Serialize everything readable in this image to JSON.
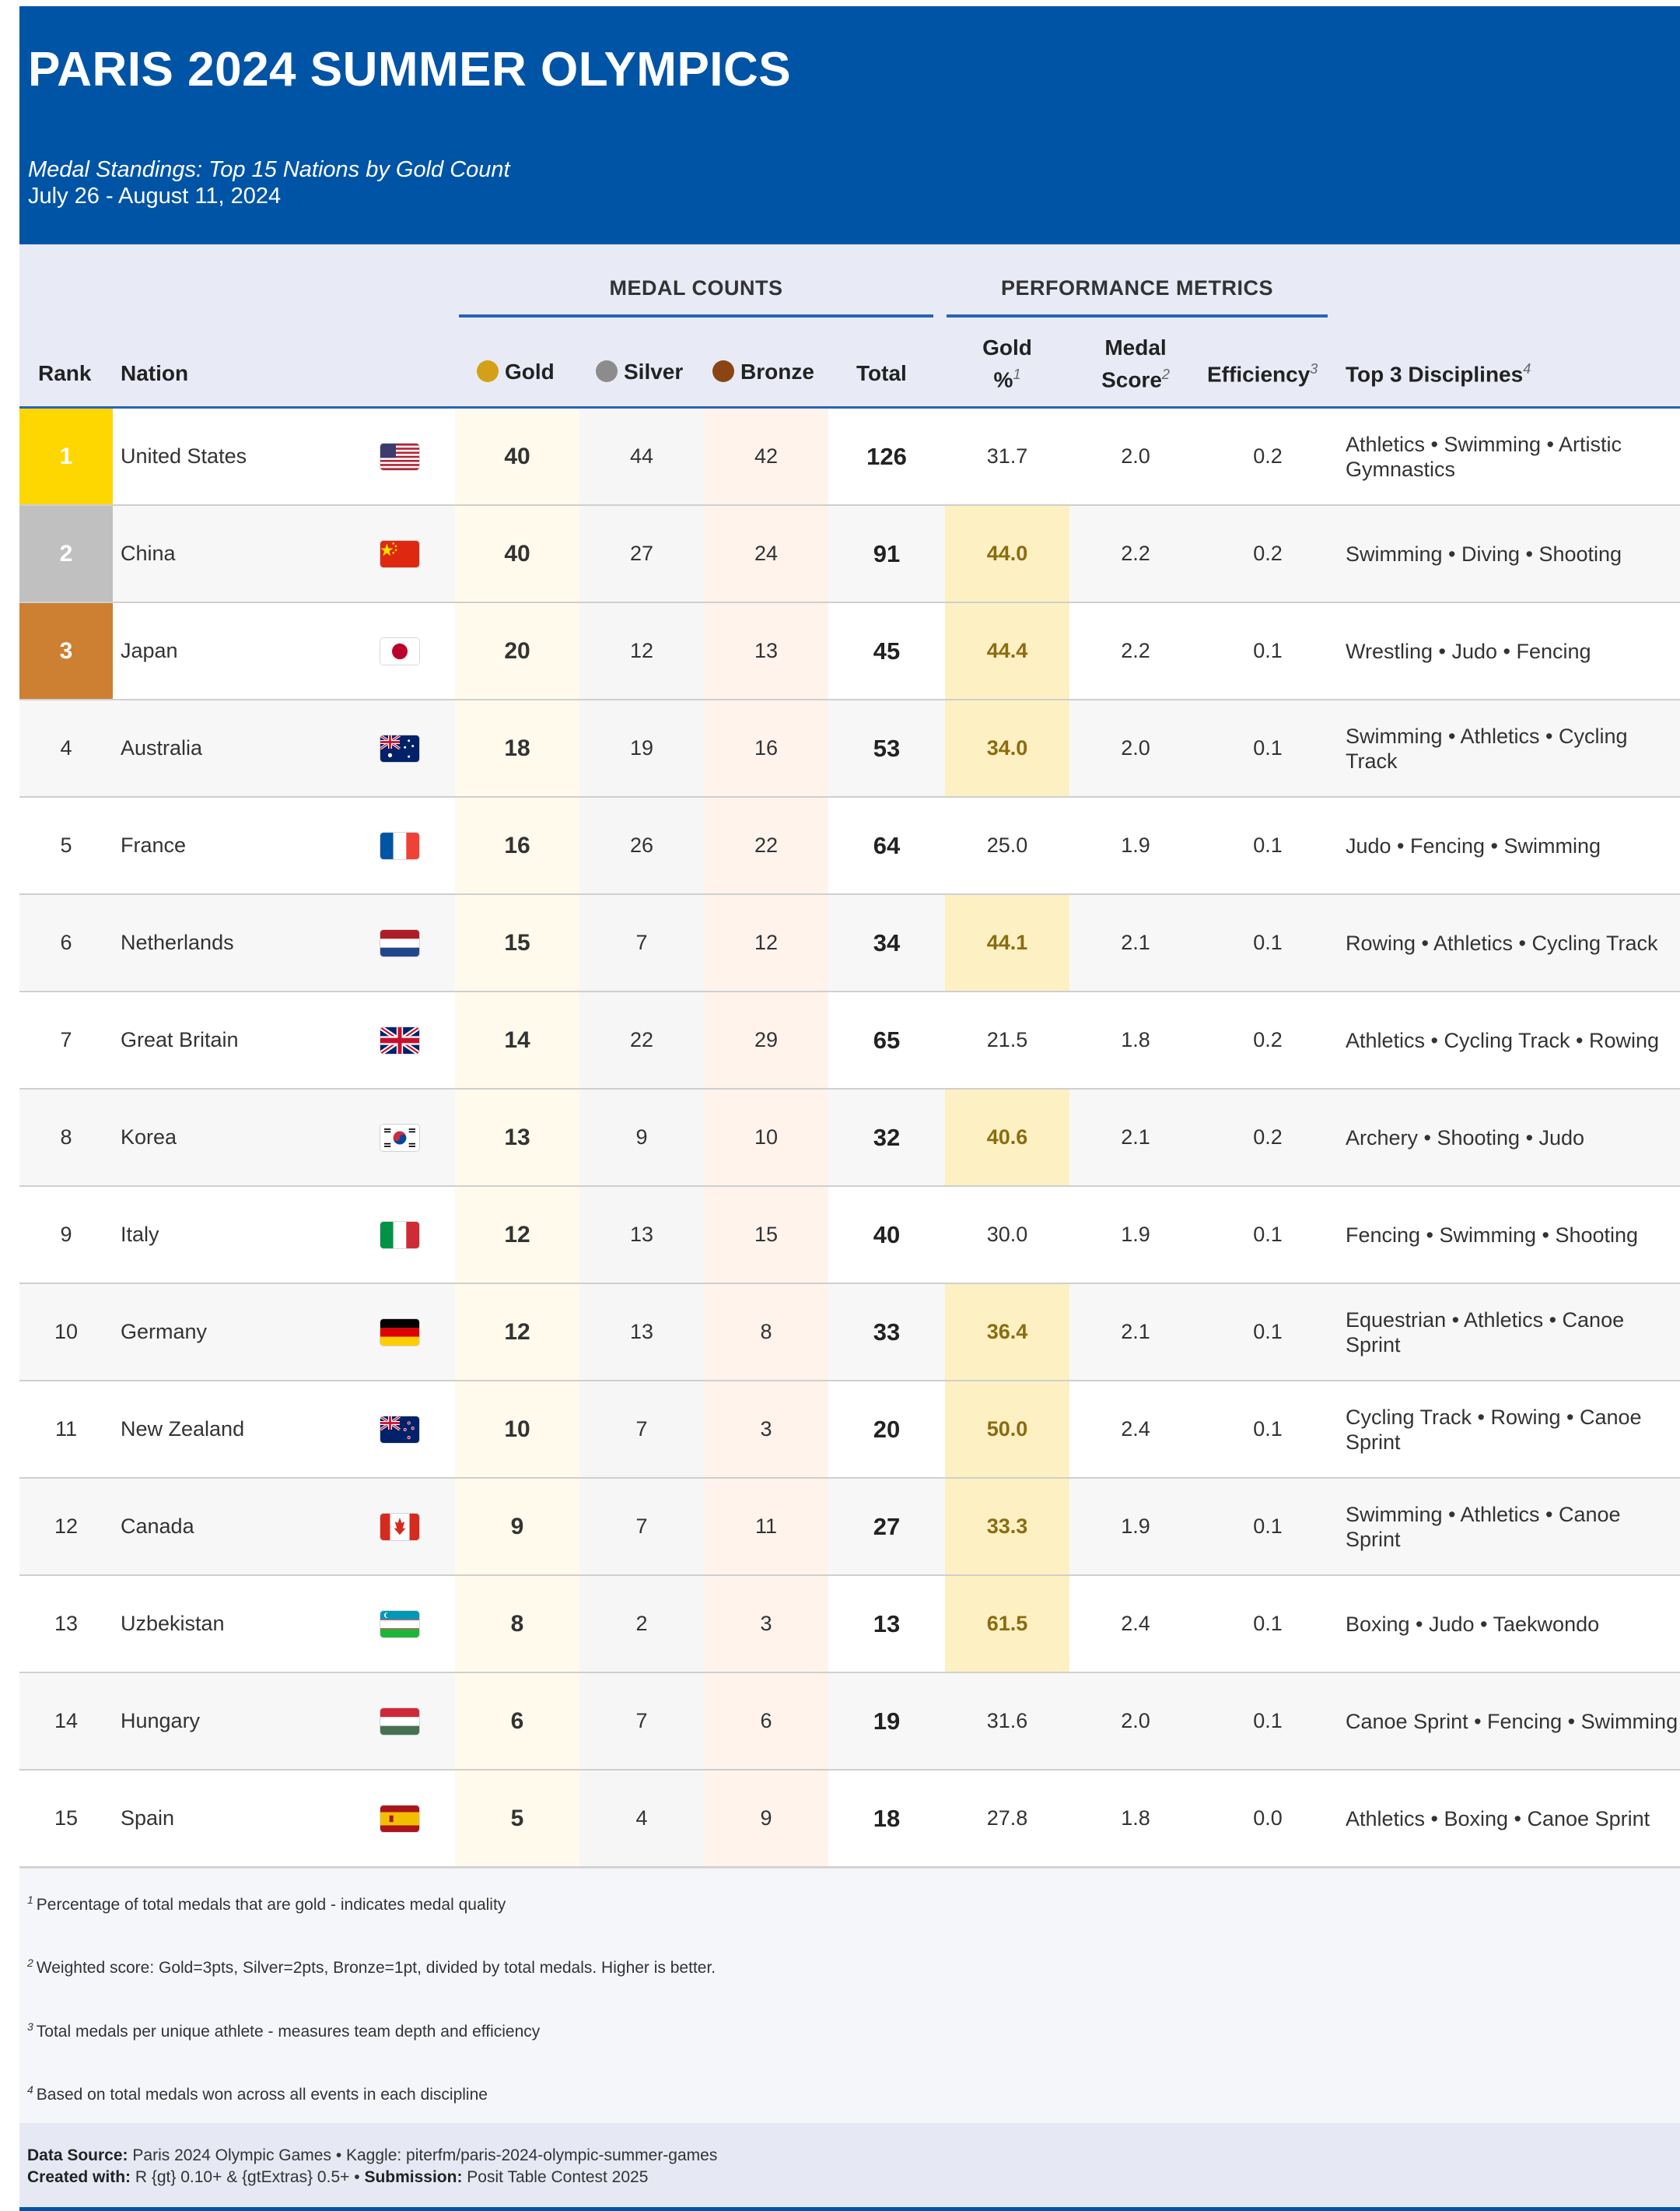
{
  "header": {
    "title": "PARIS 2024 SUMMER OLYMPICS",
    "subtitle": "Medal Standings: Top 15 Nations by Gold Count",
    "dates": "July 26 - August 11, 2024"
  },
  "spanners": {
    "medal_counts": "MEDAL COUNTS",
    "performance_metrics": "PERFORMANCE METRICS"
  },
  "columns": {
    "rank": "Rank",
    "nation": "Nation",
    "gold": "Gold",
    "silver": "Silver",
    "bronze": "Bronze",
    "total": "Total",
    "gold_pct_1": "Gold",
    "gold_pct_2": "%",
    "gold_pct_note": "1",
    "score_1": "Medal",
    "score_2": "Score",
    "score_note": "2",
    "efficiency": "Efficiency",
    "efficiency_note": "3",
    "disciplines": "Top 3 Disciplines",
    "disciplines_note": "4"
  },
  "colors": {
    "header_blue": "#0054a6",
    "gold_rank": "#ffd700",
    "silver_rank": "#c0c0c0",
    "bronze_rank": "#cd7f32",
    "gold_dot": "#d4a017",
    "silver_dot": "#8c8c8c",
    "bronze_dot": "#8b4513",
    "highlight": "#fdf0c3"
  },
  "rows": [
    {
      "rank": "1",
      "nation": "United States",
      "flag": "us",
      "gold": "40",
      "silver": "44",
      "bronze": "42",
      "total": "126",
      "gold_pct": "31.7",
      "hi": false,
      "score": "2.0",
      "eff": "0.2",
      "disciplines": "Athletics • Swimming • Artistic Gymnastics"
    },
    {
      "rank": "2",
      "nation": "China",
      "flag": "cn",
      "gold": "40",
      "silver": "27",
      "bronze": "24",
      "total": "91",
      "gold_pct": "44.0",
      "hi": true,
      "score": "2.2",
      "eff": "0.2",
      "disciplines": "Swimming • Diving • Shooting"
    },
    {
      "rank": "3",
      "nation": "Japan",
      "flag": "jp",
      "gold": "20",
      "silver": "12",
      "bronze": "13",
      "total": "45",
      "gold_pct": "44.4",
      "hi": true,
      "score": "2.2",
      "eff": "0.1",
      "disciplines": "Wrestling • Judo • Fencing"
    },
    {
      "rank": "4",
      "nation": "Australia",
      "flag": "au",
      "gold": "18",
      "silver": "19",
      "bronze": "16",
      "total": "53",
      "gold_pct": "34.0",
      "hi": true,
      "score": "2.0",
      "eff": "0.1",
      "disciplines": "Swimming • Athletics • Cycling Track"
    },
    {
      "rank": "5",
      "nation": "France",
      "flag": "fr",
      "gold": "16",
      "silver": "26",
      "bronze": "22",
      "total": "64",
      "gold_pct": "25.0",
      "hi": false,
      "score": "1.9",
      "eff": "0.1",
      "disciplines": "Judo • Fencing • Swimming"
    },
    {
      "rank": "6",
      "nation": "Netherlands",
      "flag": "nl",
      "gold": "15",
      "silver": "7",
      "bronze": "12",
      "total": "34",
      "gold_pct": "44.1",
      "hi": true,
      "score": "2.1",
      "eff": "0.1",
      "disciplines": "Rowing • Athletics • Cycling Track"
    },
    {
      "rank": "7",
      "nation": "Great Britain",
      "flag": "gb",
      "gold": "14",
      "silver": "22",
      "bronze": "29",
      "total": "65",
      "gold_pct": "21.5",
      "hi": false,
      "score": "1.8",
      "eff": "0.2",
      "disciplines": "Athletics • Cycling Track • Rowing"
    },
    {
      "rank": "8",
      "nation": "Korea",
      "flag": "kr",
      "gold": "13",
      "silver": "9",
      "bronze": "10",
      "total": "32",
      "gold_pct": "40.6",
      "hi": true,
      "score": "2.1",
      "eff": "0.2",
      "disciplines": "Archery • Shooting • Judo"
    },
    {
      "rank": "9",
      "nation": "Italy",
      "flag": "it",
      "gold": "12",
      "silver": "13",
      "bronze": "15",
      "total": "40",
      "gold_pct": "30.0",
      "hi": false,
      "score": "1.9",
      "eff": "0.1",
      "disciplines": "Fencing • Swimming • Shooting"
    },
    {
      "rank": "10",
      "nation": "Germany",
      "flag": "de",
      "gold": "12",
      "silver": "13",
      "bronze": "8",
      "total": "33",
      "gold_pct": "36.4",
      "hi": true,
      "score": "2.1",
      "eff": "0.1",
      "disciplines": "Equestrian • Athletics • Canoe Sprint"
    },
    {
      "rank": "11",
      "nation": "New Zealand",
      "flag": "nz",
      "gold": "10",
      "silver": "7",
      "bronze": "3",
      "total": "20",
      "gold_pct": "50.0",
      "hi": true,
      "score": "2.4",
      "eff": "0.1",
      "disciplines": "Cycling Track • Rowing • Canoe Sprint"
    },
    {
      "rank": "12",
      "nation": "Canada",
      "flag": "ca",
      "gold": "9",
      "silver": "7",
      "bronze": "11",
      "total": "27",
      "gold_pct": "33.3",
      "hi": true,
      "score": "1.9",
      "eff": "0.1",
      "disciplines": "Swimming • Athletics • Canoe Sprint"
    },
    {
      "rank": "13",
      "nation": "Uzbekistan",
      "flag": "uz",
      "gold": "8",
      "silver": "2",
      "bronze": "3",
      "total": "13",
      "gold_pct": "61.5",
      "hi": true,
      "score": "2.4",
      "eff": "0.1",
      "disciplines": "Boxing • Judo • Taekwondo"
    },
    {
      "rank": "14",
      "nation": "Hungary",
      "flag": "hu",
      "gold": "6",
      "silver": "7",
      "bronze": "6",
      "total": "19",
      "gold_pct": "31.6",
      "hi": false,
      "score": "2.0",
      "eff": "0.1",
      "disciplines": "Canoe Sprint • Fencing • Swimming"
    },
    {
      "rank": "15",
      "nation": "Spain",
      "flag": "es",
      "gold": "5",
      "silver": "4",
      "bronze": "9",
      "total": "18",
      "gold_pct": "27.8",
      "hi": false,
      "score": "1.8",
      "eff": "0.0",
      "disciplines": "Athletics • Boxing • Canoe Sprint"
    }
  ],
  "footnotes": [
    {
      "mark": "1",
      "text": "Percentage of total medals that are gold - indicates medal quality"
    },
    {
      "mark": "2",
      "text": "Weighted score: Gold=3pts, Silver=2pts, Bronze=1pt, divided by total medals. Higher is better."
    },
    {
      "mark": "3",
      "text": "Total medals per unique athlete - measures team depth and efficiency"
    },
    {
      "mark": "4",
      "text": "Based on total medals won across all events in each discipline"
    }
  ],
  "source": {
    "data_label": "Data Source:",
    "data_text": "Paris 2024 Olympic Games • Kaggle: piterfm/paris-2024-olympic-summer-games",
    "created_label": "Created with:",
    "created_text": "R {gt} 0.10+ & {gtExtras} 0.5+ •",
    "submission_label": "Submission:",
    "submission_text": "Posit Table Contest 2025"
  }
}
